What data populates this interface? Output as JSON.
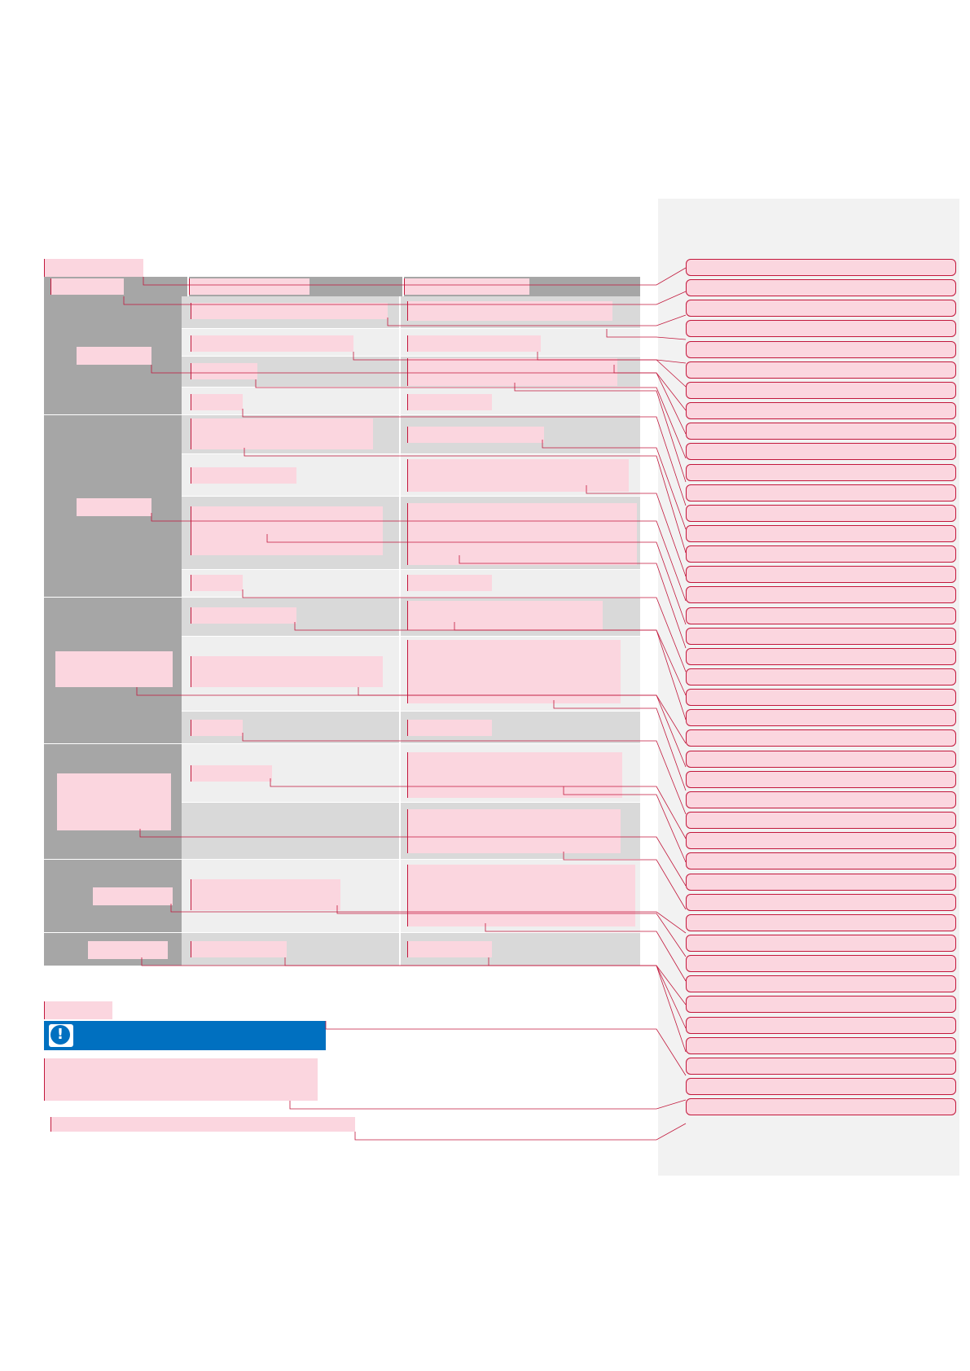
{
  "page": {
    "title": "",
    "note_heading": "",
    "note_body": "",
    "footnote": ""
  },
  "table": {
    "headers": [
      "",
      "",
      ""
    ],
    "groups": [
      {
        "label": "",
        "rows": [
          [
            "",
            ""
          ],
          [
            "",
            ""
          ],
          [
            "",
            ""
          ],
          [
            "",
            ""
          ]
        ]
      },
      {
        "label": "",
        "rows": [
          [
            "",
            ""
          ],
          [
            "",
            ""
          ],
          [
            "",
            ""
          ],
          [
            "",
            ""
          ]
        ]
      },
      {
        "label": "",
        "rows": [
          [
            "",
            ""
          ],
          [
            "",
            ""
          ],
          [
            "",
            ""
          ]
        ]
      },
      {
        "label": "",
        "rows": [
          [
            "",
            ""
          ],
          [
            "",
            ""
          ]
        ]
      },
      {
        "label": "",
        "rows": [
          [
            "",
            ""
          ]
        ]
      },
      {
        "label": "",
        "rows": [
          [
            "",
            ""
          ]
        ]
      }
    ]
  },
  "callouts": [
    "",
    "",
    "",
    "",
    "",
    "",
    "",
    "",
    "",
    "",
    "",
    "",
    "",
    "",
    "",
    "",
    "",
    "",
    "",
    "",
    "",
    "",
    "",
    "",
    "",
    "",
    "",
    "",
    "",
    "",
    "",
    "",
    "",
    "",
    "",
    "",
    "",
    "",
    "",
    "",
    "",
    ""
  ],
  "icons": {
    "warning": "exclamation-icon"
  },
  "colors": {
    "redaction": "#fbd6df",
    "leader": "#c2183c",
    "warning_bar": "#0070c0",
    "header": "#a6a6a6",
    "panel": "#f2f2f2"
  }
}
